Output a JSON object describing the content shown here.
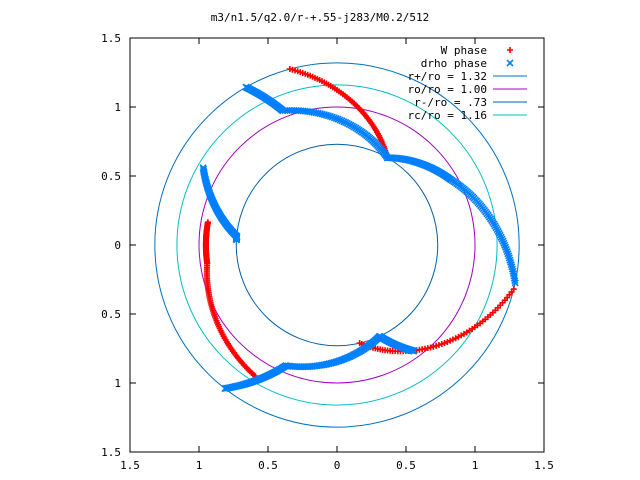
{
  "chart_data": {
    "type": "scatter",
    "title": "m3/n1.5/q2.0/r-+.55-j283/M0.2/512",
    "xlabel": "",
    "ylabel": "",
    "xlim": [
      -1.5,
      1.5
    ],
    "ylim": [
      -1.5,
      1.5
    ],
    "grid": false,
    "legend_position": "top-right",
    "x_ticks": [
      "1.5",
      "1",
      "0.5",
      "0",
      "0.5",
      "1",
      "1.5"
    ],
    "y_ticks": [
      "1.5",
      "1",
      "0.5",
      "0",
      "0.5",
      "1",
      "1.5"
    ],
    "series": [
      {
        "name": "W phase",
        "marker": "+",
        "color": "#ff0000",
        "arcs": [
          {
            "r0": 1.32,
            "r1": 0.73,
            "theta0": 105,
            "theta1": 60
          },
          {
            "r0": 0.95,
            "r1": 0.95,
            "theta0": 170,
            "theta1": 188
          },
          {
            "r0": 0.95,
            "r1": 1.12,
            "theta0": 188,
            "theta1": 238
          },
          {
            "r0": 0.73,
            "r1": 1.32,
            "theta0": 283,
            "theta1": 346
          }
        ]
      },
      {
        "name": "drho phase",
        "marker": "x",
        "color": "#0080ff",
        "arcs": [
          {
            "r0": 1.32,
            "r1": 1.05,
            "theta0": 120,
            "theta1": 112
          },
          {
            "r0": 1.05,
            "r1": 0.73,
            "theta0": 112,
            "theta1": 60
          },
          {
            "r0": 0.73,
            "r1": 0.95,
            "theta0": 60,
            "theta1": 30
          },
          {
            "r0": 0.95,
            "r1": 1.32,
            "theta0": 30,
            "theta1": -12
          },
          {
            "r0": 1.12,
            "r1": 0.73,
            "theta0": 150,
            "theta1": 175
          },
          {
            "r0": 0.73,
            "r1": 0.73,
            "theta0": 175,
            "theta1": 177
          },
          {
            "r0": 1.32,
            "r1": 0.95,
            "theta0": 232,
            "theta1": 247
          },
          {
            "r0": 0.95,
            "r1": 0.73,
            "theta0": 247,
            "theta1": 295
          },
          {
            "r0": 0.73,
            "r1": 0.95,
            "theta0": 295,
            "theta1": 306
          }
        ]
      }
    ],
    "circles": [
      {
        "name": "r+/ro = 1.32",
        "radius": 1.32,
        "color": "#0070c0"
      },
      {
        "name": "ro/ro = 1.00",
        "radius": 1.0,
        "color": "#a000c0"
      },
      {
        "name": "r-/ro = .73",
        "radius": 0.73,
        "color": "#0060a8"
      },
      {
        "name": "rc/ro = 1.16",
        "radius": 1.16,
        "color": "#00c0c0"
      }
    ]
  }
}
